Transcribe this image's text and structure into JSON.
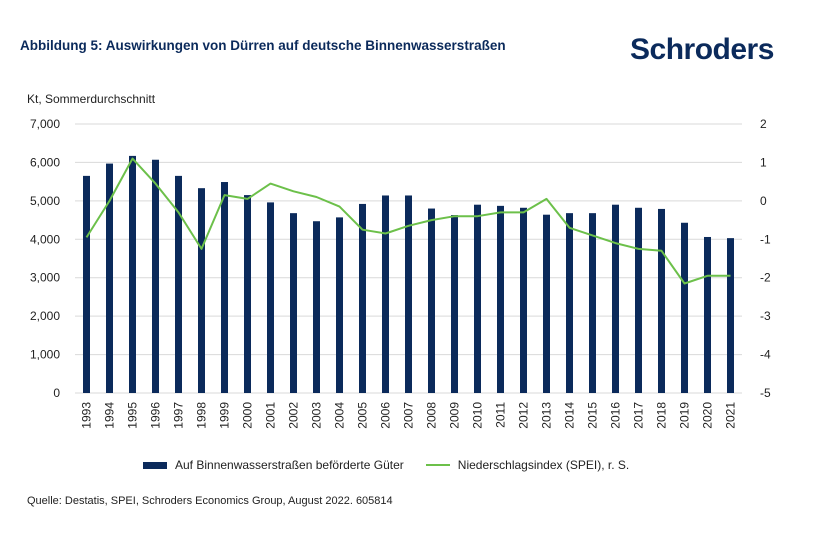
{
  "header": {
    "title": "Abbildung 5: Auswirkungen von Dürren auf deutsche Binnenwasserstraßen",
    "logo": "Schroders"
  },
  "chart_data": {
    "type": "bar",
    "ylabel": "Kt, Sommerdurchschnitt",
    "categories": [
      "1993",
      "1994",
      "1995",
      "1996",
      "1997",
      "1998",
      "1999",
      "2000",
      "2001",
      "2002",
      "2003",
      "2004",
      "2005",
      "2006",
      "2007",
      "2008",
      "2009",
      "2010",
      "2011",
      "2012",
      "2013",
      "2014",
      "2015",
      "2016",
      "2017",
      "2018",
      "2019",
      "2020",
      "2021"
    ],
    "ylim": [
      0,
      7000
    ],
    "y_ticks": [
      "7,000",
      "6,000",
      "5,000",
      "4,000",
      "3,000",
      "2,000",
      "1,000",
      "0"
    ],
    "y2lim": [
      -5,
      2
    ],
    "y2_ticks": [
      "2",
      "1",
      "0",
      "-1",
      "-2",
      "-3",
      "-4",
      "-5"
    ],
    "series": [
      {
        "name": "Auf Binnenwasserstraßen beförderte Güter",
        "type": "bar",
        "color": "#0b2a5b",
        "axis": "left",
        "values": [
          5650,
          5970,
          6170,
          6070,
          5650,
          5330,
          5490,
          5150,
          4960,
          4680,
          4470,
          4570,
          4920,
          5140,
          5140,
          4800,
          4630,
          4900,
          4870,
          4820,
          4640,
          4680,
          4680,
          4900,
          4820,
          4790,
          4430,
          4060,
          4030
        ]
      },
      {
        "name": "Niederschlagsindex (SPEI), r. S.",
        "type": "line",
        "color": "#6cc04a",
        "axis": "right",
        "values": [
          -0.95,
          0.0,
          1.1,
          0.45,
          -0.3,
          -1.25,
          0.15,
          0.05,
          0.45,
          0.25,
          0.1,
          -0.15,
          -0.75,
          -0.85,
          -0.65,
          -0.5,
          -0.4,
          -0.4,
          -0.3,
          -0.3,
          0.05,
          -0.7,
          -0.9,
          -1.1,
          -1.25,
          -1.3,
          -2.15,
          -1.95,
          -1.95
        ]
      }
    ],
    "grid": true,
    "legend_position": "bottom"
  },
  "footer": {
    "source": "Quelle: Destatis, SPEI, Schroders Economics Group, August 2022. 605814"
  }
}
